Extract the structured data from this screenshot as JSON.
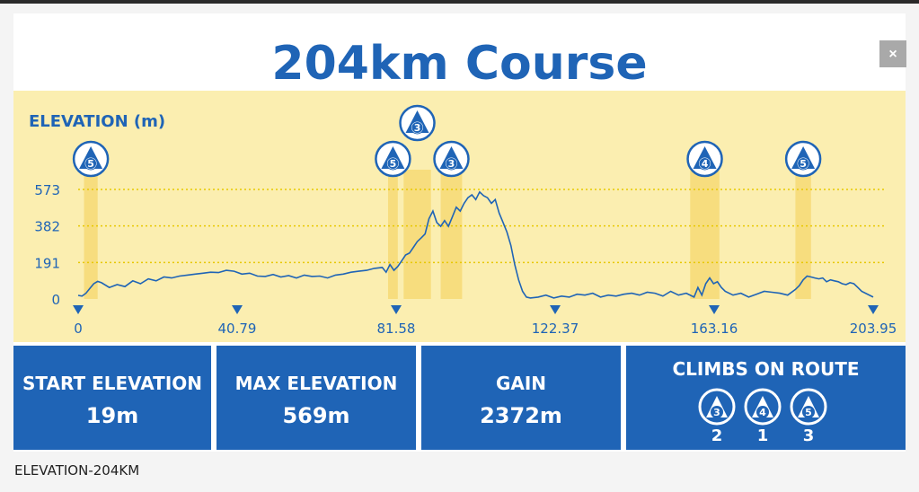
{
  "title": "204km Course",
  "close_label": "×",
  "caption": "ELEVATION-204KM",
  "colors": {
    "brand_blue": "#1f64b6",
    "chart_bg": "#fbeeb0",
    "climb_band": "#f7dd7e"
  },
  "chart_data": {
    "type": "area",
    "ylabel": "ELEVATION (m)",
    "yticks": [
      "573",
      "382",
      "191",
      "0"
    ],
    "xticks": [
      "0",
      "40.79",
      "81.58",
      "122.37",
      "163.16",
      "203.95"
    ],
    "xlim": [
      0,
      203.95
    ],
    "ylim": [
      0,
      573
    ],
    "grid": true,
    "climbs": [
      {
        "category": "5",
        "start": 1.5,
        "end": 5.0
      },
      {
        "category": "5",
        "start": 79.5,
        "end": 82.0
      },
      {
        "category": "3",
        "start": 83.5,
        "end": 90.5
      },
      {
        "category": "3",
        "start": 93.0,
        "end": 98.5
      },
      {
        "category": "4",
        "start": 157.0,
        "end": 164.5
      },
      {
        "category": "5",
        "start": 184.0,
        "end": 188.0
      }
    ],
    "x": [
      0,
      1,
      2,
      3,
      4,
      5,
      6,
      8,
      10,
      12,
      14,
      16,
      18,
      20,
      22,
      24,
      26,
      28,
      30,
      32,
      34,
      36,
      38,
      40,
      42,
      44,
      46,
      48,
      50,
      52,
      54,
      56,
      58,
      60,
      62,
      64,
      66,
      68,
      70,
      72,
      74,
      76,
      78,
      79,
      80,
      81,
      82,
      83,
      84,
      85,
      86,
      87,
      88,
      89,
      90,
      91,
      92,
      93,
      94,
      95,
      96,
      97,
      98,
      99,
      100,
      101,
      102,
      103,
      104,
      105,
      106,
      107,
      108,
      109,
      110,
      111,
      112,
      113,
      114,
      115,
      116,
      118,
      120,
      122,
      124,
      126,
      128,
      130,
      132,
      134,
      136,
      138,
      140,
      142,
      144,
      146,
      148,
      150,
      152,
      154,
      156,
      158,
      159,
      160,
      161,
      162,
      163,
      164,
      165,
      166,
      168,
      170,
      172,
      174,
      176,
      178,
      180,
      182,
      184,
      185,
      186,
      187,
      188,
      189,
      190,
      191,
      192,
      193,
      194,
      195,
      196,
      197,
      198,
      199,
      200,
      201,
      202,
      203.95
    ],
    "y": [
      19,
      15,
      30,
      55,
      80,
      92,
      85,
      60,
      75,
      65,
      95,
      80,
      105,
      95,
      115,
      110,
      120,
      125,
      130,
      135,
      140,
      138,
      150,
      145,
      130,
      135,
      120,
      118,
      128,
      115,
      122,
      110,
      125,
      118,
      120,
      110,
      125,
      130,
      140,
      145,
      150,
      160,
      165,
      140,
      180,
      150,
      170,
      200,
      230,
      240,
      270,
      300,
      320,
      340,
      420,
      460,
      400,
      380,
      410,
      380,
      430,
      480,
      460,
      500,
      530,
      545,
      520,
      560,
      540,
      530,
      500,
      520,
      450,
      400,
      350,
      280,
      180,
      100,
      40,
      10,
      5,
      10,
      20,
      5,
      15,
      10,
      25,
      20,
      30,
      10,
      20,
      15,
      25,
      30,
      20,
      35,
      30,
      15,
      40,
      20,
      30,
      10,
      60,
      20,
      80,
      110,
      80,
      90,
      60,
      40,
      20,
      30,
      10,
      25,
      40,
      35,
      30,
      20,
      50,
      70,
      100,
      120,
      115,
      110,
      105,
      110,
      90,
      100,
      95,
      90,
      80,
      75,
      85,
      80,
      60,
      40,
      30,
      10
    ]
  },
  "stats": [
    {
      "label": "START ELEVATION",
      "value": "19m"
    },
    {
      "label": "MAX ELEVATION",
      "value": "569m"
    },
    {
      "label": "GAIN",
      "value": "2372m"
    }
  ],
  "climbs_summary": {
    "label": "CLIMBS ON ROUTE",
    "items": [
      {
        "category": "3",
        "count": "2"
      },
      {
        "category": "4",
        "count": "1"
      },
      {
        "category": "5",
        "count": "3"
      }
    ]
  }
}
